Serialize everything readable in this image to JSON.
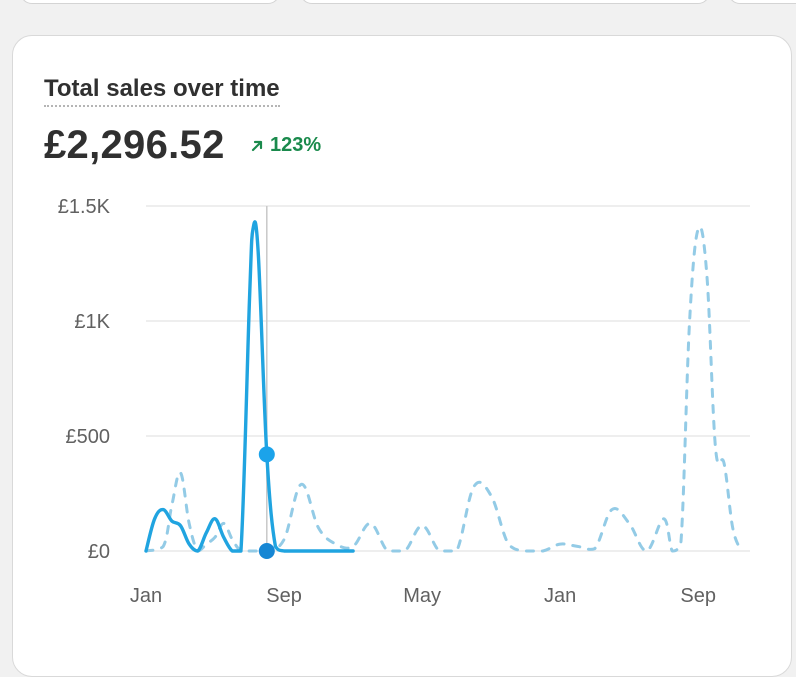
{
  "header": {
    "title": "Total sales over time",
    "total": "£2,296.52",
    "change": "123%",
    "change_icon": "arrow-up-right-icon"
  },
  "colors": {
    "current": "#20a4e0",
    "previous": "#93cbe6",
    "positive": "#1a8a4c"
  },
  "chart_data": {
    "type": "line",
    "title": "Total sales over time",
    "ylim": [
      0,
      1500
    ],
    "y_ticks": [
      {
        "value": 0,
        "label": "£0"
      },
      {
        "value": 500,
        "label": "£500"
      },
      {
        "value": 1000,
        "label": "£1K"
      },
      {
        "value": 1500,
        "label": "£1.5K"
      }
    ],
    "x_ticks": [
      {
        "index": 0,
        "label": "Jan"
      },
      {
        "index": 8,
        "label": "Sep"
      },
      {
        "index": 16,
        "label": "May"
      },
      {
        "index": 24,
        "label": "Jan"
      },
      {
        "index": 32,
        "label": "Sep"
      }
    ],
    "x_range": [
      0,
      35
    ],
    "grid": true,
    "hover_index": 7,
    "series": [
      {
        "style": "solid",
        "points": [
          {
            "x": 0,
            "y": 0
          },
          {
            "x": 0.5,
            "y": 140
          },
          {
            "x": 1,
            "y": 180
          },
          {
            "x": 1.5,
            "y": 130
          },
          {
            "x": 2,
            "y": 110
          },
          {
            "x": 2.5,
            "y": 30
          },
          {
            "x": 3,
            "y": 0
          },
          {
            "x": 3.5,
            "y": 80
          },
          {
            "x": 4,
            "y": 140
          },
          {
            "x": 4.5,
            "y": 60
          },
          {
            "x": 5,
            "y": 0
          },
          {
            "x": 5.5,
            "y": 0
          },
          {
            "x": 6,
            "y": 1100
          },
          {
            "x": 6.2,
            "y": 1400
          },
          {
            "x": 6.5,
            "y": 1300
          },
          {
            "x": 7,
            "y": 420
          },
          {
            "x": 7.5,
            "y": 20
          },
          {
            "x": 8,
            "y": 0
          },
          {
            "x": 9,
            "y": 0
          },
          {
            "x": 10,
            "y": 0
          },
          {
            "x": 11,
            "y": 0
          },
          {
            "x": 12,
            "y": 0
          }
        ],
        "markers": [
          {
            "x": 7,
            "y": 420
          },
          {
            "x": 7,
            "y": 0
          }
        ]
      },
      {
        "style": "dashed",
        "points": [
          {
            "x": 0,
            "y": 0
          },
          {
            "x": 1,
            "y": 20
          },
          {
            "x": 1.5,
            "y": 200
          },
          {
            "x": 2,
            "y": 340
          },
          {
            "x": 2.5,
            "y": 120
          },
          {
            "x": 3,
            "y": 0
          },
          {
            "x": 3.5,
            "y": 30
          },
          {
            "x": 4,
            "y": 60
          },
          {
            "x": 4.5,
            "y": 120
          },
          {
            "x": 5,
            "y": 50
          },
          {
            "x": 5.5,
            "y": 0
          },
          {
            "x": 6,
            "y": 0
          },
          {
            "x": 7,
            "y": 0
          },
          {
            "x": 8,
            "y": 50
          },
          {
            "x": 9,
            "y": 290
          },
          {
            "x": 10,
            "y": 100
          },
          {
            "x": 11,
            "y": 30
          },
          {
            "x": 12,
            "y": 20
          },
          {
            "x": 13,
            "y": 120
          },
          {
            "x": 14,
            "y": 0
          },
          {
            "x": 15,
            "y": 0
          },
          {
            "x": 16,
            "y": 110
          },
          {
            "x": 17,
            "y": 0
          },
          {
            "x": 18,
            "y": 0
          },
          {
            "x": 19,
            "y": 280
          },
          {
            "x": 20,
            "y": 240
          },
          {
            "x": 21,
            "y": 30
          },
          {
            "x": 22,
            "y": 0
          },
          {
            "x": 23,
            "y": 0
          },
          {
            "x": 24,
            "y": 30
          },
          {
            "x": 25,
            "y": 20
          },
          {
            "x": 26,
            "y": 10
          },
          {
            "x": 27,
            "y": 180
          },
          {
            "x": 28,
            "y": 120
          },
          {
            "x": 29,
            "y": 0
          },
          {
            "x": 30,
            "y": 140
          },
          {
            "x": 30.5,
            "y": 0
          },
          {
            "x": 31,
            "y": 40
          },
          {
            "x": 31.5,
            "y": 1000
          },
          {
            "x": 32,
            "y": 1400
          },
          {
            "x": 32.5,
            "y": 1200
          },
          {
            "x": 33,
            "y": 450
          },
          {
            "x": 33.5,
            "y": 380
          },
          {
            "x": 34,
            "y": 100
          },
          {
            "x": 34.5,
            "y": 0
          }
        ]
      }
    ]
  }
}
